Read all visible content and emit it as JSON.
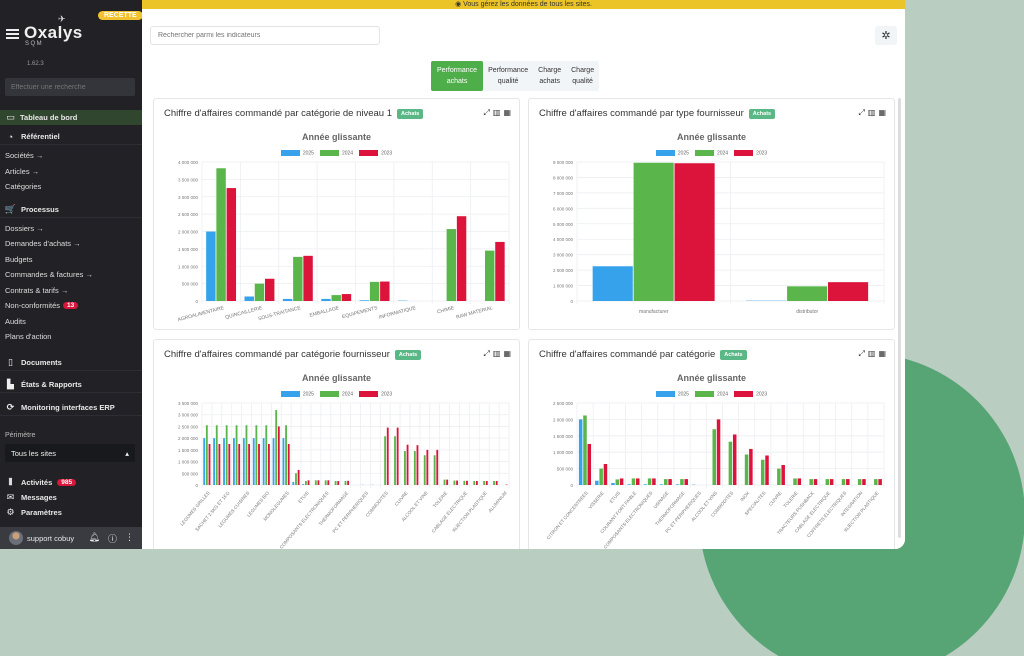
{
  "env_badge": "RECETTE",
  "brand": {
    "name": "Oxalys",
    "sub": "SQM",
    "version": "1.62.3"
  },
  "sidebar": {
    "search_placeholder": "Effectuer une recherche",
    "active_item": "Tableau de bord",
    "sections": {
      "referentiel": {
        "label": "Référentiel",
        "items": [
          "Sociétés →",
          "Articles →",
          "Catégories"
        ]
      },
      "processus": {
        "label": "Processus",
        "items": [
          "Dossiers →",
          "Demandes d'achats →",
          "Budgets",
          "Commandes & factures →",
          "Contrats & tarifs →",
          "Non-conformités",
          "Audits",
          "Plans d'action"
        ],
        "nonconf_count": "13"
      },
      "documents": "Documents",
      "etats": "États & Rapports",
      "monitoring": "Monitoring interfaces ERP"
    },
    "perimetre_label": "Périmètre",
    "perimetre_value": "Tous les sites",
    "bottom": {
      "activites": "Activités",
      "activites_count": "985",
      "messages": "Messages",
      "parametres": "Paramètres"
    },
    "user": "support cobuy"
  },
  "banner": "◉ Vous gérez les données de tous les sites.",
  "search_indicators_placeholder": "Rechercher parmi les indicateurs",
  "tabs": [
    {
      "l1": "Performance",
      "l2": "achats",
      "active": true
    },
    {
      "l1": "Performance",
      "l2": "qualité"
    },
    {
      "l1": "Charge",
      "l2": "achats"
    },
    {
      "l1": "Charge",
      "l2": "qualité"
    }
  ],
  "badge_label": "Achats",
  "colors": {
    "2025": "#36a2eb",
    "2024": "#5ab54a",
    "2023": "#dc143c"
  },
  "chart_data": [
    {
      "type": "bar",
      "title": "Chiffre d'affaires commandé par catégorie de niveau 1",
      "subtitle": "Année glissante",
      "legend": [
        "2025",
        "2024",
        "2023"
      ],
      "ylim": [
        0,
        4000000
      ],
      "yticks": [
        "0",
        "500 000",
        "1 000 000",
        "1 500 000",
        "2 000 000",
        "2 500 000",
        "3 000 000",
        "3 500 000",
        "4 000 000"
      ],
      "categories": [
        "AGROALIMENTAIRE",
        "QUINCAILLERIE",
        "SOUS-TRAITANCE",
        "EMBALLAGE",
        "EQUIPEMENTS",
        "INFORMATIQUE",
        "CHIMIE",
        "RAW MATERIAL"
      ],
      "series": [
        {
          "name": "2025",
          "values": [
            2000000,
            130000,
            60000,
            60000,
            20000,
            10000,
            0,
            0
          ]
        },
        {
          "name": "2024",
          "values": [
            3820000,
            500000,
            1270000,
            170000,
            550000,
            0,
            2070000,
            1450000
          ]
        },
        {
          "name": "2023",
          "values": [
            3250000,
            640000,
            1300000,
            200000,
            560000,
            0,
            2440000,
            1700000
          ]
        }
      ]
    },
    {
      "type": "bar",
      "title": "Chiffre d'affaires commandé par type fournisseur",
      "subtitle": "Année glissante",
      "legend": [
        "2025",
        "2024",
        "2023"
      ],
      "ylim": [
        0,
        9000000
      ],
      "yticks": [
        "0",
        "1 000 000",
        "2 000 000",
        "3 000 000",
        "4 000 000",
        "5 000 000",
        "6 000 000",
        "7 000 000",
        "8 000 000",
        "9 000 000"
      ],
      "categories": [
        "manufacturer",
        "distributor"
      ],
      "series": [
        {
          "name": "2025",
          "values": [
            2250000,
            20000
          ]
        },
        {
          "name": "2024",
          "values": [
            8950000,
            950000
          ]
        },
        {
          "name": "2023",
          "values": [
            8920000,
            1220000
          ]
        }
      ]
    },
    {
      "type": "bar",
      "title": "Chiffre d'affaires commandé par catégorie fournisseur",
      "subtitle": "Année glissante",
      "legend": [
        "2025",
        "2024",
        "2023"
      ],
      "ylim": [
        0,
        3500000
      ],
      "yticks": [
        "0",
        "500 000",
        "1 000 000",
        "1 500 000",
        "2 000 000",
        "2 500 000",
        "3 000 000",
        "3 500 000"
      ],
      "categories": [
        "LEGUMES GRILLES",
        "",
        "SACHET 2.5KG ET 1KG",
        "",
        "LEGUMES CUISINES",
        "",
        "LEGUMES BIO",
        "",
        "MONOLEGUMES",
        "",
        "ETUIS",
        "",
        "COMPOSANTS ELECTRONIQUES",
        "",
        "THERMOFORMAGE",
        "",
        "PC ET PERIPHERIQUES",
        "",
        "COMMODITES",
        "",
        "CUIVRE",
        "",
        "ALCOOL ET VINS",
        "",
        "TOLERIE",
        "",
        "CABLAGE ELECTRIQUE",
        "",
        "INJECTION PLASTIQUE",
        "",
        "ALUMINIUM"
      ],
      "series": [
        {
          "name": "2025",
          "values": [
            2000000,
            2000000,
            2000000,
            2000000,
            2000000,
            2000000,
            2000000,
            2000000,
            2000000,
            130000,
            40000,
            0,
            0,
            0,
            0,
            0,
            10000,
            10000,
            0,
            0,
            0,
            0,
            0,
            0,
            0,
            0,
            0,
            0,
            0,
            0,
            0
          ]
        },
        {
          "name": "2024",
          "values": [
            2550000,
            2550000,
            2550000,
            2550000,
            2550000,
            2550000,
            2550000,
            3200000,
            2550000,
            500000,
            170000,
            200000,
            200000,
            170000,
            170000,
            0,
            0,
            0,
            2080000,
            2080000,
            1450000,
            1450000,
            1270000,
            1270000,
            230000,
            190000,
            180000,
            170000,
            170000,
            170000,
            0
          ]
        },
        {
          "name": "2023",
          "values": [
            1750000,
            1750000,
            1750000,
            1750000,
            1750000,
            1750000,
            1750000,
            2500000,
            1750000,
            640000,
            200000,
            200000,
            200000,
            170000,
            180000,
            0,
            0,
            0,
            2450000,
            2450000,
            1720000,
            1700000,
            1500000,
            1500000,
            230000,
            190000,
            180000,
            170000,
            170000,
            170000,
            20000
          ]
        }
      ]
    },
    {
      "type": "bar",
      "title": "Chiffre d'affaires commandé par catégorie",
      "subtitle": "Année glissante",
      "legend": [
        "2025",
        "2024",
        "2023"
      ],
      "ylim": [
        0,
        2500000
      ],
      "yticks": [
        "0",
        "500 000",
        "1 000 000",
        "1 500 000",
        "2 000 000",
        "2 500 000"
      ],
      "categories": [
        "CITRON ET CONCENTREES",
        "VISSERIE",
        "ETUIS",
        "COURANT FORT FAIBLE",
        "COMPOSANTS ELECTRONIQUES",
        "USINAGE",
        "THERMOFORMAGE",
        "PC ET PERIPHERIQUES",
        "ALCOOL ET VINS",
        "COMMODITES",
        "INOX",
        "SPECIALITES",
        "CUIVRE",
        "TOLERIE",
        "TRACTEURS PUSHBACK",
        "CABLAGE ELECTRIQUE",
        "COFFRETS ELECTRIQUES",
        "INTEGRATION",
        "INJECTION PLASTIQUE"
      ],
      "series": [
        {
          "name": "2025",
          "values": [
            2000000,
            130000,
            60000,
            20000,
            20000,
            20000,
            20000,
            10000,
            0,
            0,
            0,
            0,
            0,
            0,
            0,
            0,
            0,
            0,
            0
          ]
        },
        {
          "name": "2024",
          "values": [
            2120000,
            500000,
            170000,
            200000,
            200000,
            180000,
            180000,
            0,
            1700000,
            1320000,
            930000,
            770000,
            500000,
            200000,
            180000,
            180000,
            180000,
            180000,
            180000
          ]
        },
        {
          "name": "2023",
          "values": [
            1250000,
            640000,
            200000,
            200000,
            200000,
            180000,
            180000,
            0,
            2000000,
            1540000,
            1100000,
            900000,
            610000,
            200000,
            180000,
            180000,
            180000,
            180000,
            180000
          ]
        }
      ]
    }
  ]
}
